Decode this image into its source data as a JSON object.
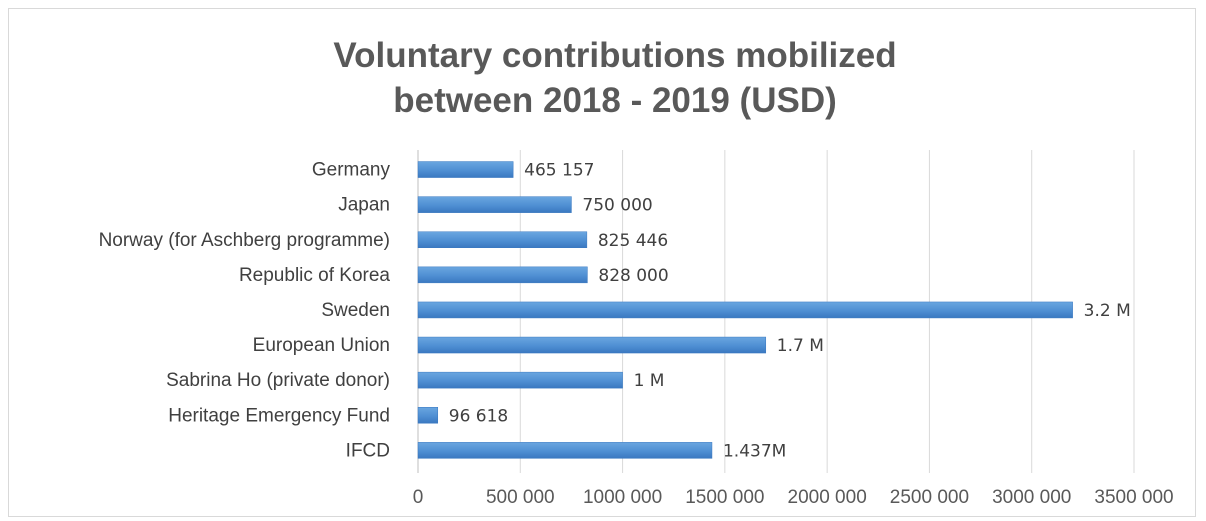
{
  "chart_data": {
    "type": "bar",
    "orientation": "horizontal",
    "title": [
      "Voluntary contributions mobilized",
      "between 2018 - 2019 (USD)"
    ],
    "categories": [
      "Germany",
      "Japan",
      "Norway (for Aschberg programme)",
      "Republic of Korea",
      "Sweden",
      "European Union",
      "Sabrina Ho (private donor)",
      "Heritage Emergency Fund",
      "IFCD"
    ],
    "values": [
      465157,
      750000,
      825446,
      828000,
      3200000,
      1700000,
      1000000,
      96618,
      1437000
    ],
    "data_labels": [
      "465 157",
      "750 000",
      "825 446",
      "828 000",
      "3.2 M",
      "1.7 M",
      "1 M",
      "96 618",
      "1.437M"
    ],
    "x_ticks": [
      0,
      500000,
      1000000,
      1500000,
      2000000,
      2500000,
      3000000,
      3500000
    ],
    "x_tick_labels": [
      "0",
      "500 000",
      "1000 000",
      "1500 000",
      "2000 000",
      "2500 000",
      "3000 000",
      "3500 000"
    ],
    "xlim": [
      0,
      3500000
    ],
    "grid": "vertical",
    "bar_color": "#4f8fd3",
    "bar_color_dark": "#3a78c0"
  }
}
